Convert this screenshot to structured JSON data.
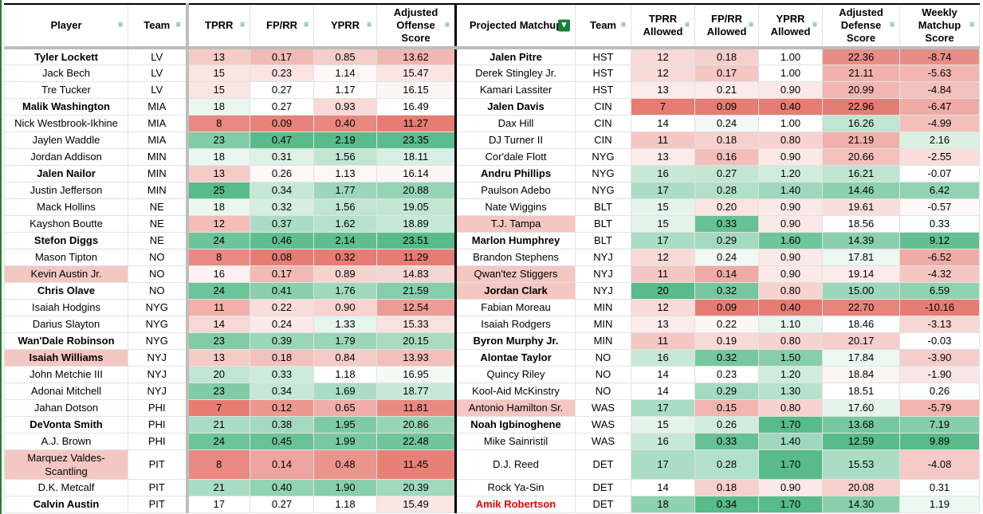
{
  "headers": {
    "player": "Player",
    "team": "Team",
    "tprr": "TPRR",
    "fprr": "FP/RR",
    "yprr": "YPRR",
    "aos": "Adjusted Offense Score",
    "matchup": "Projected Matchup",
    "dteam": "Team",
    "tprr_a": "TPRR Allowed",
    "fprr_a": "FP/RR Allowed",
    "yprr_a": "YPRR Allowed",
    "ads": "Adjusted Defense Score",
    "wms": "Weekly Matchup Score"
  },
  "colors": {
    "low": "#e67c73",
    "mid": "#ffffff",
    "high": "#57bb8a",
    "name_highlight": "#f4c7c3",
    "alert_text": "#ee0000",
    "filter_green": "#188038"
  },
  "rows": [
    {
      "player": "Tyler Lockett",
      "pb": true,
      "team": "LV",
      "tprr": "13",
      "fprr": "0.17",
      "yprr": "0.85",
      "aos": "13.62",
      "matchup": "Jalen Pitre",
      "mb": true,
      "dteam": "HST",
      "tprr_a": "12",
      "fprr_a": "0.18",
      "yprr_a": "1.00",
      "ads": "22.36",
      "wms": "-8.74"
    },
    {
      "player": "Jack Bech",
      "team": "LV",
      "tprr": "15",
      "fprr": "0.23",
      "yprr": "1.14",
      "aos": "15.47",
      "matchup": "Derek Stingley Jr.",
      "dteam": "HST",
      "tprr_a": "12",
      "fprr_a": "0.17",
      "yprr_a": "1.00",
      "ads": "21.11",
      "wms": "-5.63"
    },
    {
      "player": "Tre Tucker",
      "team": "LV",
      "tprr": "15",
      "fprr": "0.27",
      "yprr": "1.17",
      "aos": "16.15",
      "matchup": "Kamari Lassiter",
      "dteam": "HST",
      "tprr_a": "13",
      "fprr_a": "0.21",
      "yprr_a": "0.90",
      "ads": "20.99",
      "wms": "-4.84"
    },
    {
      "player": "Malik Washington",
      "pb": true,
      "team": "MIA",
      "tprr": "18",
      "fprr": "0.27",
      "yprr": "0.93",
      "aos": "16.49",
      "matchup": "Jalen Davis",
      "mb": true,
      "dteam": "CIN",
      "tprr_a": "7",
      "fprr_a": "0.09",
      "yprr_a": "0.40",
      "ads": "22.96",
      "wms": "-6.47"
    },
    {
      "player": "Nick Westbrook-Ikhine",
      "team": "MIA",
      "tprr": "8",
      "fprr": "0.09",
      "yprr": "0.40",
      "aos": "11.27",
      "matchup": "Dax Hill",
      "dteam": "CIN",
      "tprr_a": "14",
      "fprr_a": "0.24",
      "yprr_a": "1.00",
      "ads": "16.26",
      "wms": "-4.99"
    },
    {
      "player": "Jaylen Waddle",
      "team": "MIA",
      "tprr": "23",
      "fprr": "0.47",
      "yprr": "2.19",
      "aos": "23.35",
      "matchup": "DJ Turner II",
      "dteam": "CIN",
      "tprr_a": "11",
      "fprr_a": "0.18",
      "yprr_a": "0.80",
      "ads": "21.19",
      "wms": "2.16"
    },
    {
      "player": "Jordan Addison",
      "team": "MIN",
      "tprr": "18",
      "fprr": "0.31",
      "yprr": "1.56",
      "aos": "18.11",
      "matchup": "Cor'dale Flott",
      "dteam": "NYG",
      "tprr_a": "13",
      "fprr_a": "0.16",
      "yprr_a": "0.90",
      "ads": "20.66",
      "wms": "-2.55"
    },
    {
      "player": "Jalen Nailor",
      "pb": true,
      "team": "MIN",
      "tprr": "13",
      "fprr": "0.26",
      "yprr": "1.13",
      "aos": "16.14",
      "matchup": "Andru Phillips",
      "mb": true,
      "dteam": "NYG",
      "tprr_a": "16",
      "fprr_a": "0.27",
      "yprr_a": "1.20",
      "ads": "16.21",
      "wms": "-0.07"
    },
    {
      "player": "Justin Jefferson",
      "team": "MIN",
      "tprr": "25",
      "fprr": "0.34",
      "yprr": "1.77",
      "aos": "20.88",
      "matchup": "Paulson Adebo",
      "dteam": "NYG",
      "tprr_a": "17",
      "fprr_a": "0.28",
      "yprr_a": "1.40",
      "ads": "14.46",
      "wms": "6.42"
    },
    {
      "player": "Mack Hollins",
      "team": "NE",
      "tprr": "18",
      "fprr": "0.32",
      "yprr": "1.56",
      "aos": "19.05",
      "matchup": "Nate Wiggins",
      "dteam": "BLT",
      "tprr_a": "15",
      "fprr_a": "0.20",
      "yprr_a": "0.90",
      "ads": "19.61",
      "wms": "-0.57"
    },
    {
      "player": "Kayshon Boutte",
      "team": "NE",
      "tprr": "12",
      "fprr": "0.37",
      "yprr": "1.62",
      "aos": "18.89",
      "matchup": "T.J. Tampa",
      "mh": true,
      "dteam": "BLT",
      "tprr_a": "15",
      "fprr_a": "0.33",
      "yprr_a": "0.90",
      "ads": "18.56",
      "wms": "0.33"
    },
    {
      "player": "Stefon Diggs",
      "pb": true,
      "team": "NE",
      "tprr": "24",
      "fprr": "0.46",
      "yprr": "2.14",
      "aos": "23.51",
      "matchup": "Marlon Humphrey",
      "mb": true,
      "dteam": "BLT",
      "tprr_a": "17",
      "fprr_a": "0.29",
      "yprr_a": "1.60",
      "ads": "14.39",
      "wms": "9.12"
    },
    {
      "player": "Mason Tipton",
      "team": "NO",
      "tprr": "8",
      "fprr": "0.08",
      "yprr": "0.32",
      "aos": "11.29",
      "matchup": "Brandon Stephens",
      "dteam": "NYJ",
      "tprr_a": "12",
      "fprr_a": "0.24",
      "yprr_a": "0.90",
      "ads": "17.81",
      "wms": "-6.52"
    },
    {
      "player": "Kevin Austin Jr.",
      "ph": true,
      "team": "NO",
      "tprr": "16",
      "fprr": "0.17",
      "yprr": "0.89",
      "aos": "14.83",
      "matchup": "Qwan'tez Stiggers",
      "mh": true,
      "dteam": "NYJ",
      "tprr_a": "11",
      "fprr_a": "0.14",
      "yprr_a": "0.90",
      "ads": "19.14",
      "wms": "-4.32"
    },
    {
      "player": "Chris Olave",
      "pb": true,
      "team": "NO",
      "tprr": "24",
      "fprr": "0.41",
      "yprr": "1.76",
      "aos": "21.59",
      "matchup": "Jordan Clark",
      "mb": true,
      "mh": true,
      "dteam": "NYJ",
      "tprr_a": "20",
      "fprr_a": "0.32",
      "yprr_a": "0.80",
      "ads": "15.00",
      "wms": "6.59"
    },
    {
      "player": "Isaiah Hodgins",
      "team": "NYG",
      "tprr": "11",
      "fprr": "0.22",
      "yprr": "0.90",
      "aos": "12.54",
      "matchup": "Fabian Moreau",
      "dteam": "MIN",
      "tprr_a": "12",
      "fprr_a": "0.09",
      "yprr_a": "0.40",
      "ads": "22.70",
      "wms": "-10.16"
    },
    {
      "player": "Darius Slayton",
      "team": "NYG",
      "tprr": "14",
      "fprr": "0.24",
      "yprr": "1.33",
      "aos": "15.33",
      "matchup": "Isaiah Rodgers",
      "dteam": "MIN",
      "tprr_a": "13",
      "fprr_a": "0.22",
      "yprr_a": "1.10",
      "ads": "18.46",
      "wms": "-3.13"
    },
    {
      "player": "Wan'Dale Robinson",
      "pb": true,
      "team": "NYG",
      "tprr": "23",
      "fprr": "0.39",
      "yprr": "1.79",
      "aos": "20.15",
      "matchup": "Byron Murphy Jr.",
      "mb": true,
      "dteam": "MIN",
      "tprr_a": "11",
      "fprr_a": "0.19",
      "yprr_a": "0.80",
      "ads": "20.17",
      "wms": "-0.03"
    },
    {
      "player": "Isaiah Williams",
      "pb": true,
      "ph": true,
      "team": "NYJ",
      "tprr": "13",
      "fprr": "0.18",
      "yprr": "0.84",
      "aos": "13.93",
      "matchup": "Alontae Taylor",
      "mb": true,
      "dteam": "NO",
      "tprr_a": "16",
      "fprr_a": "0.32",
      "yprr_a": "1.50",
      "ads": "17.84",
      "wms": "-3.90"
    },
    {
      "player": "John Metchie III",
      "team": "NYJ",
      "tprr": "20",
      "fprr": "0.33",
      "yprr": "1.18",
      "aos": "16.95",
      "matchup": "Quincy Riley",
      "dteam": "NO",
      "tprr_a": "14",
      "fprr_a": "0.23",
      "yprr_a": "1.20",
      "ads": "18.84",
      "wms": "-1.90"
    },
    {
      "player": "Adonai Mitchell",
      "team": "NYJ",
      "tprr": "23",
      "fprr": "0.34",
      "yprr": "1.69",
      "aos": "18.77",
      "matchup": "Kool-Aid McKinstry",
      "dteam": "NO",
      "tprr_a": "14",
      "fprr_a": "0.29",
      "yprr_a": "1.30",
      "ads": "18.51",
      "wms": "0.26"
    },
    {
      "player": "Jahan Dotson",
      "team": "PHI",
      "tprr": "7",
      "fprr": "0.12",
      "yprr": "0.65",
      "aos": "11.81",
      "matchup": "Antonio Hamilton Sr.",
      "mh": true,
      "dteam": "WAS",
      "tprr_a": "17",
      "fprr_a": "0.15",
      "yprr_a": "0.80",
      "ads": "17.60",
      "wms": "-5.79"
    },
    {
      "player": "DeVonta Smith",
      "pb": true,
      "team": "PHI",
      "tprr": "21",
      "fprr": "0.38",
      "yprr": "1.95",
      "aos": "20.86",
      "matchup": "Noah Igbinoghene",
      "mb": true,
      "dteam": "WAS",
      "tprr_a": "15",
      "fprr_a": "0.26",
      "yprr_a": "1.70",
      "ads": "13.68",
      "wms": "7.19"
    },
    {
      "player": "A.J. Brown",
      "team": "PHI",
      "tprr": "24",
      "fprr": "0.45",
      "yprr": "1.99",
      "aos": "22.48",
      "matchup": "Mike Sainristil",
      "dteam": "WAS",
      "tprr_a": "16",
      "fprr_a": "0.33",
      "yprr_a": "1.40",
      "ads": "12.59",
      "wms": "9.89"
    },
    {
      "player": "Marquez Valdes-Scantling",
      "ph": true,
      "tall": true,
      "team": "PIT",
      "tprr": "8",
      "fprr": "0.14",
      "yprr": "0.48",
      "aos": "11.45",
      "matchup": "D.J. Reed",
      "dteam": "DET",
      "tprr_a": "17",
      "fprr_a": "0.28",
      "yprr_a": "1.70",
      "ads": "15.53",
      "wms": "-4.08"
    },
    {
      "player": "D.K. Metcalf",
      "team": "PIT",
      "tprr": "21",
      "fprr": "0.40",
      "yprr": "1.90",
      "aos": "20.39",
      "matchup": "Rock Ya-Sin",
      "dteam": "DET",
      "tprr_a": "14",
      "fprr_a": "0.18",
      "yprr_a": "0.90",
      "ads": "20.08",
      "wms": "0.31"
    },
    {
      "player": "Calvin Austin",
      "pb": true,
      "team": "PIT",
      "tprr": "17",
      "fprr": "0.27",
      "yprr": "1.18",
      "aos": "15.49",
      "matchup": "Amik Robertson",
      "mb": true,
      "mred": true,
      "dteam": "DET",
      "tprr_a": "18",
      "fprr_a": "0.34",
      "yprr_a": "1.70",
      "ads": "14.30",
      "wms": "1.19"
    }
  ]
}
